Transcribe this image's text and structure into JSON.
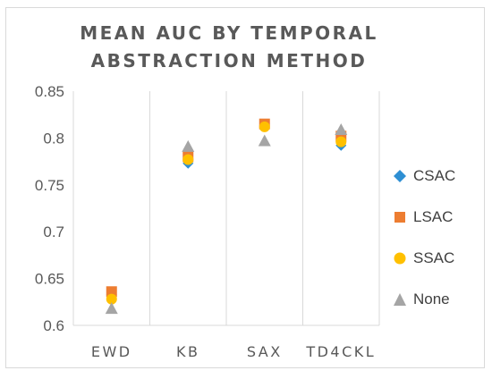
{
  "chart_data": {
    "type": "scatter",
    "title": "MEAN AUC BY TEMPORAL ABSTRACTION METHOD",
    "categories": [
      "EWD",
      "KB",
      "SAX",
      "TD4CKL"
    ],
    "ylim": [
      0.6,
      0.85
    ],
    "yticks": [
      "0.6",
      "0.65",
      "0.7",
      "0.75",
      "0.8",
      "0.85"
    ],
    "grid": "vertical",
    "legend_position": "right",
    "series": [
      {
        "name": "CSAC",
        "values": [
          0.633,
          0.773,
          0.813,
          0.792
        ],
        "color": "#2e8fd3",
        "marker": "diamond"
      },
      {
        "name": "LSAC",
        "values": [
          0.636,
          0.78,
          0.815,
          0.802
        ],
        "color": "#ed7d31",
        "marker": "square"
      },
      {
        "name": "SSAC",
        "values": [
          0.628,
          0.777,
          0.812,
          0.796
        ],
        "color": "#ffc000",
        "marker": "circle"
      },
      {
        "name": "None",
        "values": [
          0.618,
          0.791,
          0.797,
          0.809
        ],
        "color": "#a5a5a5",
        "marker": "triangle"
      }
    ]
  }
}
